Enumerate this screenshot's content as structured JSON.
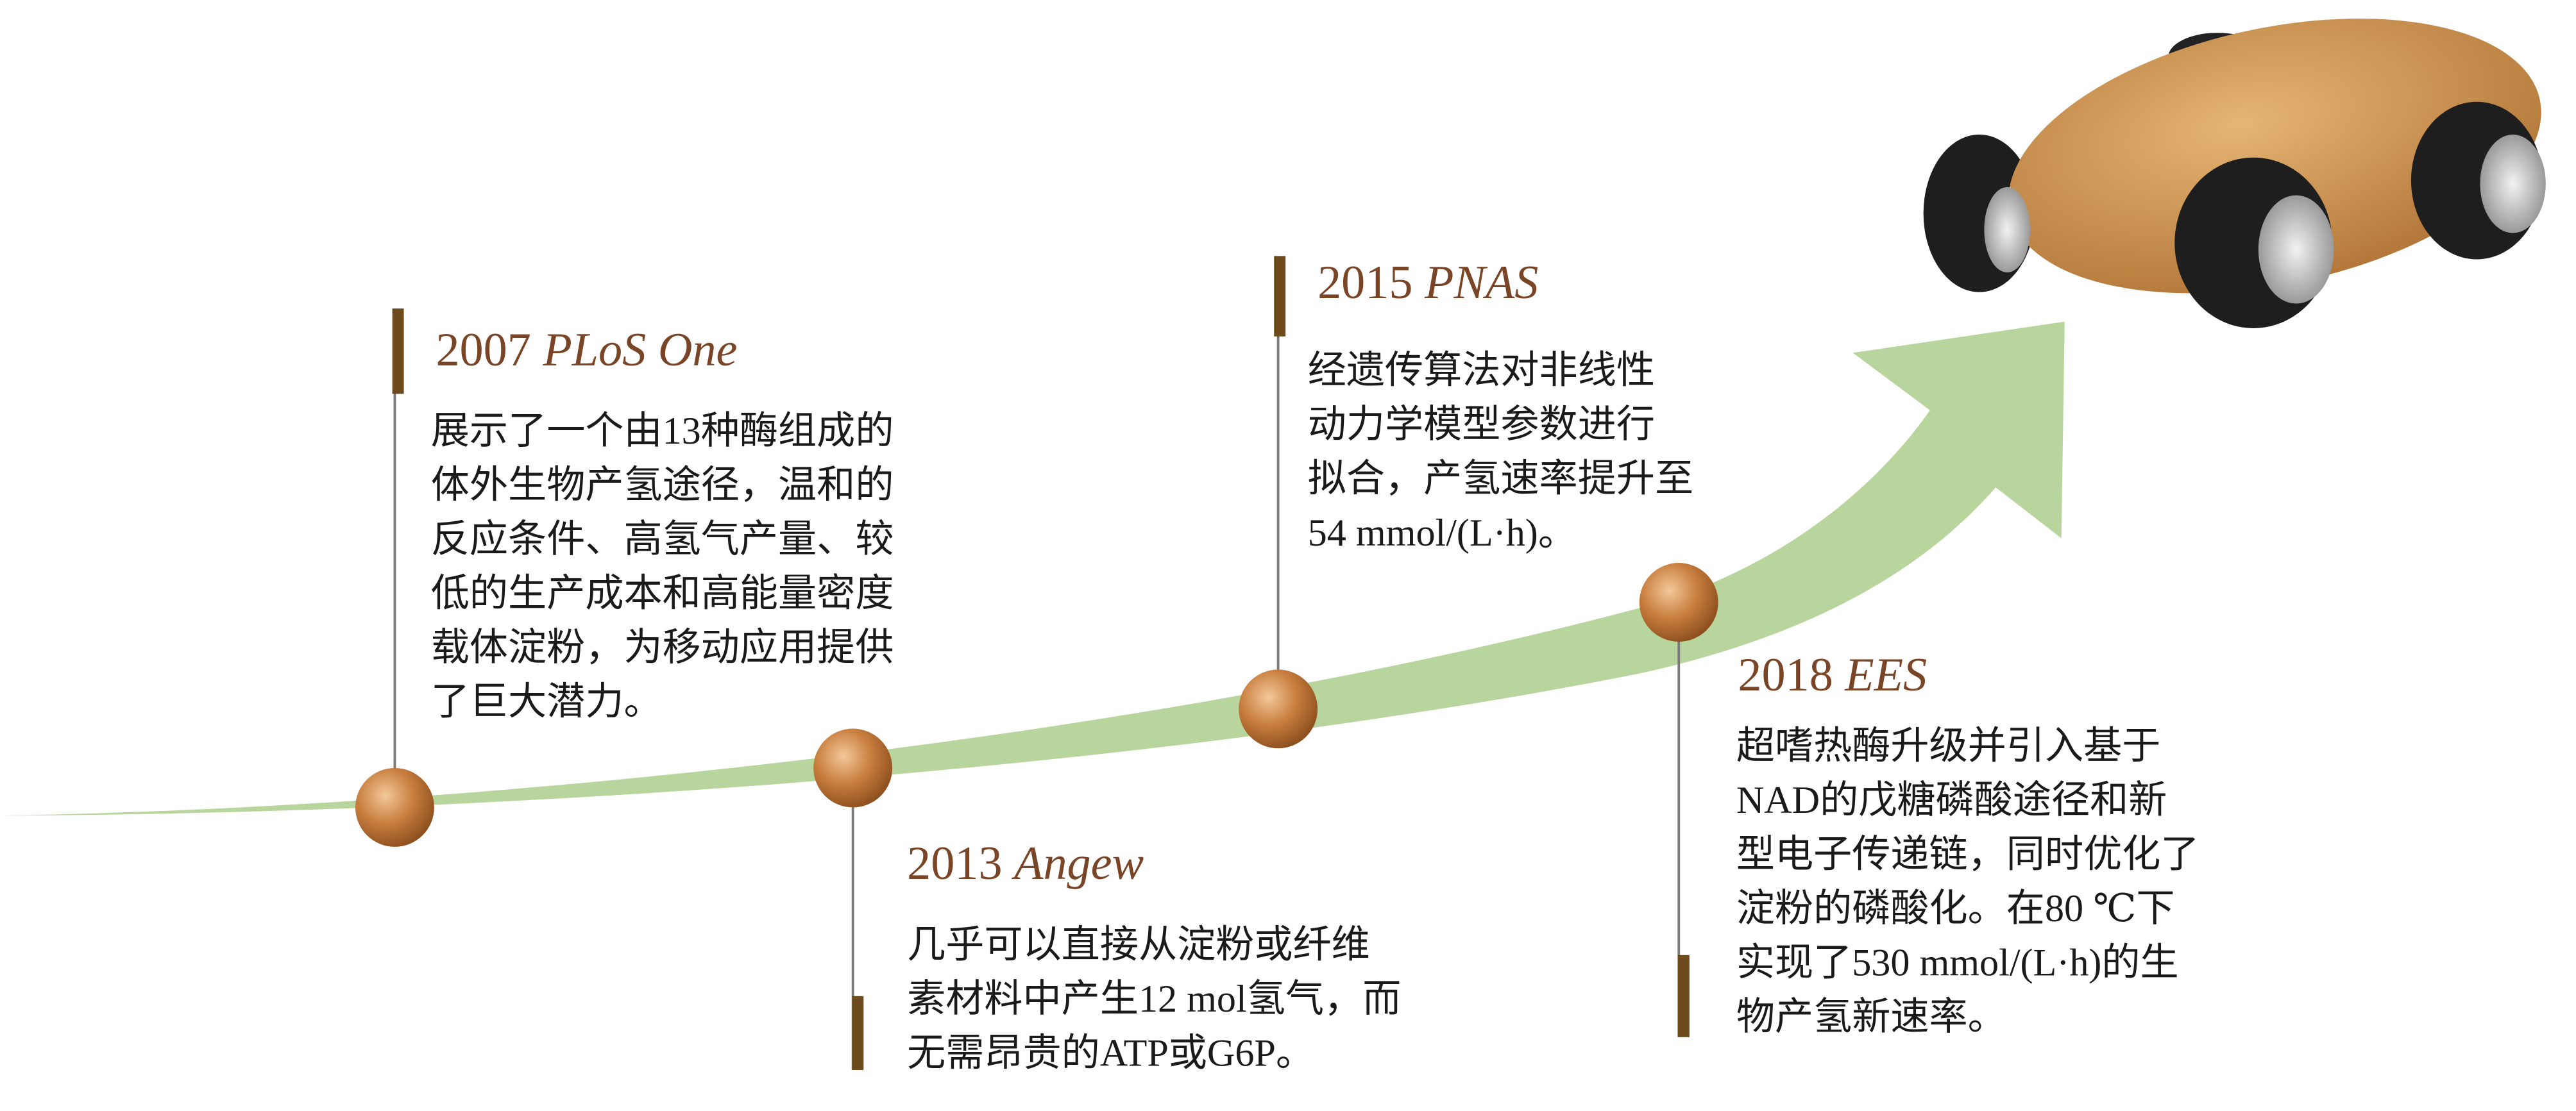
{
  "events": [
    {
      "year": "2007",
      "journal": "PLoS One",
      "lines": [
        "展示了一个由13种酶组成的",
        "体外生物产氢途径，温和的",
        "反应条件、高氢气产量、较",
        "低的生产成本和高能量密度",
        "载体淀粉，为移动应用提供",
        "了巨大潜力。"
      ]
    },
    {
      "year": "2013",
      "journal": "Angew",
      "lines": [
        "几乎可以直接从淀粉或纤维",
        "素材料中产生12 mol氢气，而",
        "无需昂贵的ATP或G6P。"
      ]
    },
    {
      "year": "2015",
      "journal": "PNAS",
      "lines": [
        "经遗传算法对非线性",
        "动力学模型参数进行",
        "拟合，产氢速率提升至",
        "54 mmol/(L·h)。"
      ]
    },
    {
      "year": "2018",
      "journal": "EES",
      "lines": [
        "超嗜热酶升级并引入基于",
        "NAD的戊糖磷酸途径和新",
        "型电子传递链，同时优化了",
        "淀粉的磷酸化。在80 ℃下",
        "实现了530 mmol/(L·h)的生",
        "物产氢新速率。"
      ]
    }
  ]
}
